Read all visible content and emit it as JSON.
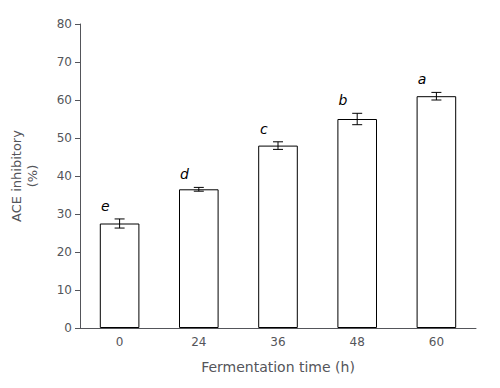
{
  "chart_data": {
    "type": "bar",
    "categories": [
      "0",
      "24",
      "36",
      "48",
      "60"
    ],
    "values": [
      27.5,
      36.5,
      48.0,
      55.0,
      61.0
    ],
    "errors": [
      1.2,
      0.5,
      1.0,
      1.5,
      1.0
    ],
    "letters": [
      "e",
      "d",
      "c",
      "b",
      "a"
    ],
    "xlabel": "Fermentation time (h)",
    "ylabel": "ACE inhibitory\n(%)",
    "ylim": [
      0,
      80
    ],
    "yticks": [
      0,
      10,
      20,
      30,
      40,
      50,
      60,
      70,
      80
    ],
    "color": "#ffffff",
    "grid": false
  }
}
